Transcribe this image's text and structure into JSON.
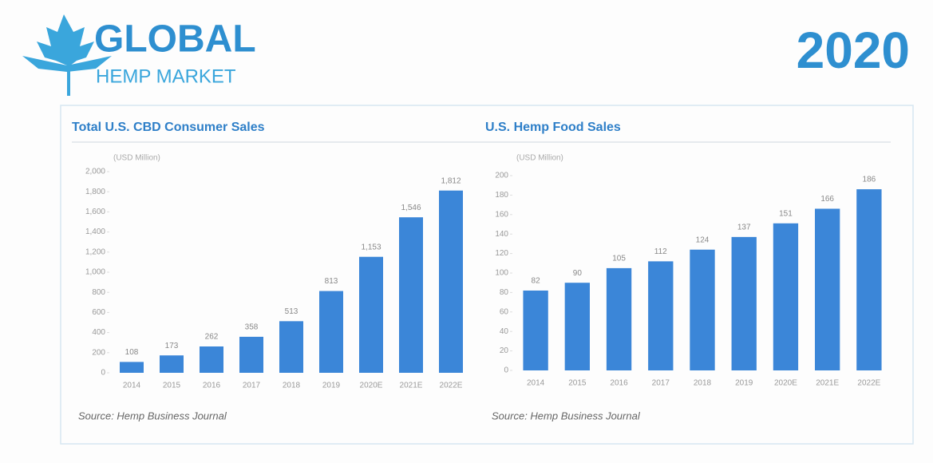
{
  "header": {
    "title": "GLOBAL",
    "subtitle": "HEMP MARKET",
    "year": "2020"
  },
  "chart_data": [
    {
      "type": "bar",
      "title": "Total U.S. CBD Consumer Sales",
      "y_label": "(USD Million)",
      "categories": [
        "2014",
        "2015",
        "2016",
        "2017",
        "2018",
        "2019",
        "2020E",
        "2021E",
        "2022E"
      ],
      "values": [
        108,
        173,
        262,
        358,
        513,
        813,
        1153,
        1546,
        1812
      ],
      "value_labels": [
        "108",
        "173",
        "262",
        "358",
        "513",
        "813",
        "1,153",
        "1,546",
        "1,812"
      ],
      "color": "#3b86d8",
      "ylim": [
        0,
        2000
      ],
      "yticks": [
        0,
        200,
        400,
        600,
        800,
        {
          "value": 1000,
          "label": "1,000"
        },
        {
          "value": 1200,
          "label": "1,200"
        },
        {
          "value": 1400,
          "label": "1,400"
        },
        {
          "value": 1600,
          "label": "1,600"
        },
        {
          "value": 1800,
          "label": "1,800"
        },
        {
          "value": 2000,
          "label": "2,000"
        }
      ],
      "source": "Source: Hemp Business Journal"
    },
    {
      "type": "bar",
      "title": "U.S. Hemp Food Sales",
      "y_label": "(USD Million)",
      "categories": [
        "2014",
        "2015",
        "2016",
        "2017",
        "2018",
        "2019",
        "2020E",
        "2021E",
        "2022E"
      ],
      "values": [
        82,
        90,
        105,
        112,
        124,
        137,
        151,
        166,
        186
      ],
      "color": "#3b86d8",
      "ylim": [
        0,
        200
      ],
      "yticks": [
        0,
        20,
        40,
        60,
        80,
        100,
        120,
        140,
        160,
        180,
        200
      ],
      "source": "Source: Hemp Business Journal"
    }
  ]
}
